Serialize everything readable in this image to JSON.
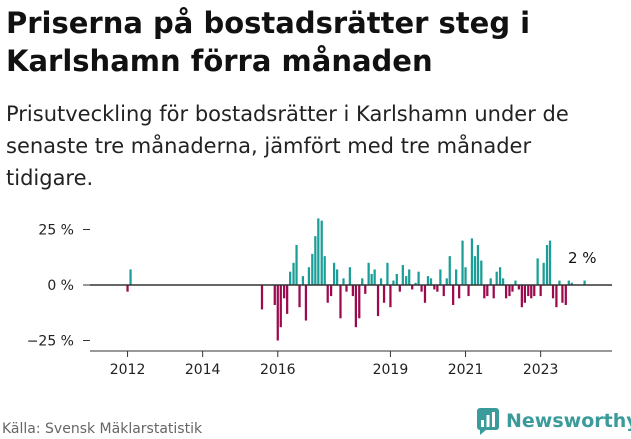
{
  "header": {
    "title": "Priserna på bostadsrätter steg i Karlshamn förra månaden",
    "subtitle": "Prisutveckling för bostadsrätter i Karlshamn under de senaste tre månaderna, jämfört med tre månader tidigare."
  },
  "footer": {
    "source": "Källa: Svensk Mäklarstatistik",
    "brand": "Newsworthy"
  },
  "colors": {
    "positive": "#1a9e97",
    "negative": "#9c0a4d",
    "axis": "#333333",
    "grid": "#cccccc"
  },
  "chart_data": {
    "type": "bar",
    "title": "",
    "xlabel": "",
    "ylabel": "",
    "ylim": [
      -30,
      35
    ],
    "xlim": [
      2011,
      2024.9
    ],
    "y_ticks": [
      25,
      0,
      -25
    ],
    "y_tick_labels": [
      "25 %",
      "0 %",
      "−25 %"
    ],
    "x_ticks": [
      2012,
      2014,
      2016,
      2019,
      2021,
      2023
    ],
    "x_tick_labels": [
      "2012",
      "2014",
      "2016",
      "2019",
      "2021",
      "2023"
    ],
    "annotation": "2 %",
    "grid": false,
    "legend": "none",
    "series": [
      {
        "x": [
          2012.0,
          2012.08,
          2015.58,
          2015.92,
          2016.0,
          2016.08,
          2016.17,
          2016.25,
          2016.33,
          2016.42,
          2016.5,
          2016.58,
          2016.67,
          2016.75,
          2016.83,
          2016.92,
          2017.0,
          2017.08,
          2017.17,
          2017.25,
          2017.33,
          2017.42,
          2017.5,
          2017.58,
          2017.67,
          2017.75,
          2017.83,
          2017.92,
          2018.0,
          2018.08,
          2018.17,
          2018.25,
          2018.33,
          2018.42,
          2018.5,
          2018.58,
          2018.67,
          2018.75,
          2018.83,
          2018.92,
          2019.0,
          2019.08,
          2019.17,
          2019.25,
          2019.33,
          2019.42,
          2019.5,
          2019.58,
          2019.67,
          2019.75,
          2019.83,
          2019.92,
          2020.0,
          2020.08,
          2020.17,
          2020.25,
          2020.33,
          2020.42,
          2020.5,
          2020.58,
          2020.67,
          2020.75,
          2020.83,
          2020.92,
          2021.0,
          2021.08,
          2021.17,
          2021.25,
          2021.33,
          2021.42,
          2021.5,
          2021.58,
          2021.67,
          2021.75,
          2021.83,
          2021.92,
          2022.0,
          2022.08,
          2022.17,
          2022.25,
          2022.33,
          2022.42,
          2022.5,
          2022.58,
          2022.67,
          2022.75,
          2022.83,
          2022.92,
          2023.0,
          2023.08,
          2023.17,
          2023.25,
          2023.33,
          2023.42,
          2023.5,
          2023.58,
          2023.67,
          2023.75,
          2023.83,
          2023.92,
          2024.0,
          2024.08,
          2024.17
        ],
        "values": [
          -3,
          7,
          -11,
          -9,
          -25,
          -19,
          -6,
          -13,
          6,
          10,
          18,
          -10,
          4,
          -16,
          8,
          14,
          22,
          30,
          29,
          13,
          -8,
          -5,
          10,
          7,
          -15,
          3,
          -3,
          8,
          -5,
          -19,
          -15,
          3,
          -4,
          10,
          5,
          7,
          -14,
          3,
          -8,
          10,
          -10,
          2,
          5,
          -3,
          9,
          4,
          7,
          -2,
          1,
          6,
          -3,
          -8,
          4,
          3,
          -2,
          -3,
          7,
          -5,
          3,
          13,
          -9,
          7,
          -6,
          20,
          8,
          -5,
          21,
          13,
          18,
          11,
          -6,
          -5,
          3,
          -6,
          6,
          8,
          3,
          -6,
          -5,
          -3,
          2,
          -2,
          -10,
          -8,
          -5,
          -6,
          -5,
          12,
          -5,
          10,
          18,
          20,
          -6,
          -10,
          2,
          -8,
          -9,
          2,
          1,
          0,
          0,
          0,
          2
        ]
      }
    ]
  }
}
